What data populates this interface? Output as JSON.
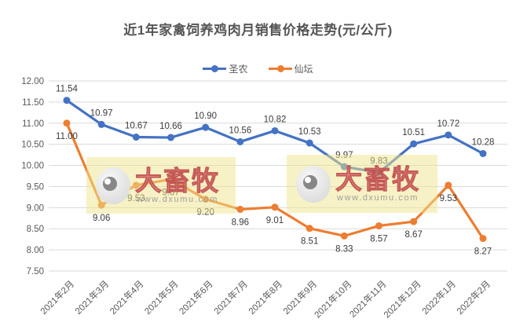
{
  "chart_data": {
    "type": "line",
    "title": "近1年家禽饲养鸡肉月销售价格走势(元/公斤)",
    "categories": [
      "2021年2月",
      "2021年3月",
      "2021年4月",
      "2021年5月",
      "2021年6月",
      "2021年7月",
      "2021年8月",
      "2021年9月",
      "2021年10月",
      "2021年11月",
      "2021年12月",
      "2022年1月",
      "2022年2月"
    ],
    "series": [
      {
        "name": "圣农",
        "color": "#4472C4",
        "values": [
          11.54,
          10.97,
          10.67,
          10.66,
          10.9,
          10.56,
          10.82,
          10.53,
          9.97,
          9.83,
          10.51,
          10.72,
          10.28
        ],
        "label_position": "above"
      },
      {
        "name": "仙坛",
        "color": "#ED7D31",
        "values": [
          11.0,
          9.06,
          9.53,
          9.67,
          9.2,
          8.96,
          9.01,
          8.51,
          8.33,
          8.57,
          8.67,
          9.53,
          8.27
        ],
        "label_position": "below"
      }
    ],
    "ylim": [
      7.5,
      12.0
    ],
    "ytick_step": 0.5,
    "grid": true,
    "legend_position": "top",
    "gridline_color": "#D9D9D9",
    "axis_label_color": "#595959",
    "data_label_color": "#3B3B3B"
  },
  "watermarks": [
    {
      "brand": "大畜牧",
      "url": "www.dxumu.com"
    },
    {
      "brand": "大畜牧",
      "url": "www.dxumu.com"
    }
  ]
}
